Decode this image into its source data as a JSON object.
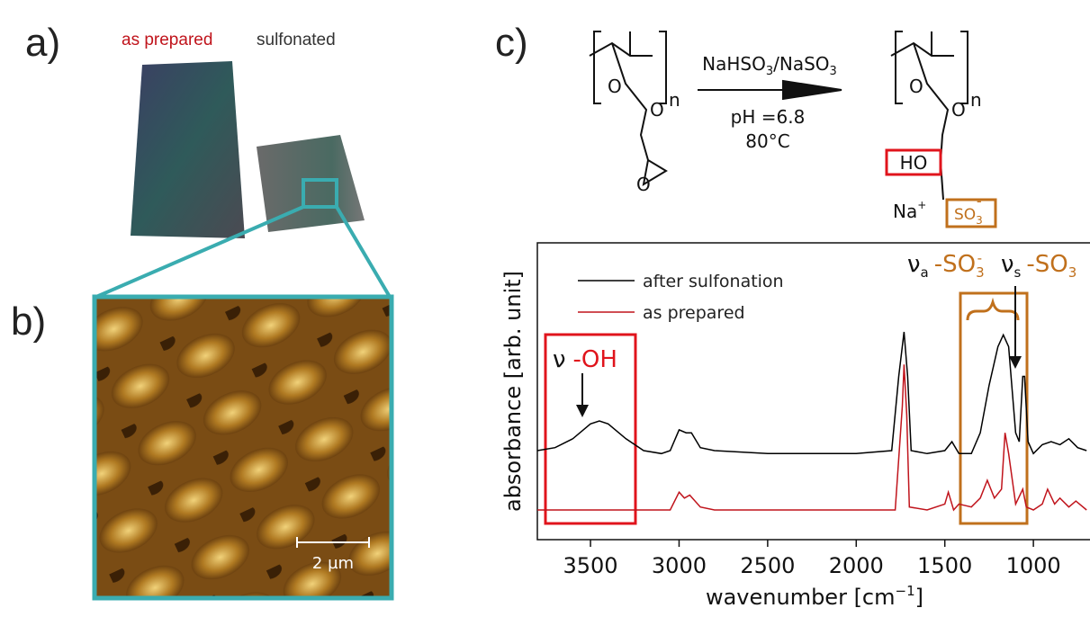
{
  "panels": {
    "a": {
      "label": "a)",
      "texts": [
        "as prepared",
        "sulfonated"
      ]
    },
    "b": {
      "label": "b)",
      "scale_bar": "2 µm"
    },
    "c": {
      "label": "c)"
    }
  },
  "scheme": {
    "oxygen": "O",
    "repeat": "n",
    "reagent": [
      "NaHSO",
      "3",
      "/NaSO",
      "3"
    ],
    "conditions": [
      "pH =6.8",
      "80°C"
    ],
    "hydroxyl": "HO",
    "cation": [
      "Na",
      "+"
    ],
    "sulfonate": [
      "SO",
      "3",
      "-"
    ]
  },
  "chart_data": {
    "type": "line",
    "xlabel": [
      "wavenumber [cm",
      "−1",
      "]"
    ],
    "ylabel": "absorbance [arb. unit]",
    "xlim": [
      3800,
      650
    ],
    "ylim": [
      0,
      10
    ],
    "xticks": [
      3500,
      3000,
      2500,
      2000,
      1500,
      1000
    ],
    "legend": "upper left",
    "annotations": {
      "oh": [
        "ν",
        "-OH"
      ],
      "asym": [
        "ν",
        "a",
        "-SO",
        "3",
        "-"
      ],
      "sym": [
        "ν",
        "s",
        "-SO",
        "3",
        "-"
      ]
    },
    "series": [
      {
        "name": "after sulfonation",
        "color": "#000000",
        "x": [
          3800,
          3700,
          3600,
          3500,
          3450,
          3400,
          3300,
          3200,
          3100,
          3050,
          3000,
          2960,
          2930,
          2880,
          2800,
          2500,
          2000,
          1800,
          1760,
          1730,
          1710,
          1690,
          1600,
          1500,
          1460,
          1420,
          1350,
          1300,
          1250,
          1200,
          1170,
          1140,
          1100,
          1080,
          1060,
          1050,
          1030,
          1000,
          950,
          900,
          850,
          800,
          750,
          700
        ],
        "values": [
          3.0,
          3.1,
          3.4,
          3.9,
          4.0,
          3.9,
          3.4,
          3.0,
          2.9,
          3.0,
          3.7,
          3.6,
          3.6,
          3.1,
          3.0,
          2.9,
          2.9,
          3.0,
          5.5,
          7.0,
          5.5,
          3.0,
          2.9,
          3.0,
          3.3,
          2.9,
          2.9,
          3.6,
          5.2,
          6.5,
          6.9,
          6.5,
          3.6,
          3.3,
          5.5,
          5.5,
          3.3,
          2.9,
          3.2,
          3.3,
          3.2,
          3.4,
          3.1,
          3.0
        ]
      },
      {
        "name": "as prepared",
        "color": "#c0141c",
        "x": [
          3800,
          3200,
          3050,
          3000,
          2970,
          2940,
          2880,
          2800,
          2000,
          1780,
          1740,
          1730,
          1715,
          1700,
          1600,
          1500,
          1480,
          1450,
          1420,
          1350,
          1300,
          1260,
          1220,
          1180,
          1160,
          1140,
          1100,
          1060,
          1040,
          1000,
          950,
          920,
          880,
          850,
          800,
          760,
          700
        ],
        "values": [
          1.0,
          1.0,
          1.0,
          1.6,
          1.4,
          1.5,
          1.1,
          1.0,
          1.0,
          1.0,
          4.5,
          5.9,
          4.2,
          1.1,
          1.0,
          1.2,
          1.6,
          1.0,
          1.2,
          1.1,
          1.4,
          2.0,
          1.4,
          1.7,
          3.6,
          2.9,
          1.2,
          1.7,
          1.1,
          1.0,
          1.2,
          1.7,
          1.2,
          1.4,
          1.1,
          1.3,
          1.0
        ]
      }
    ]
  }
}
